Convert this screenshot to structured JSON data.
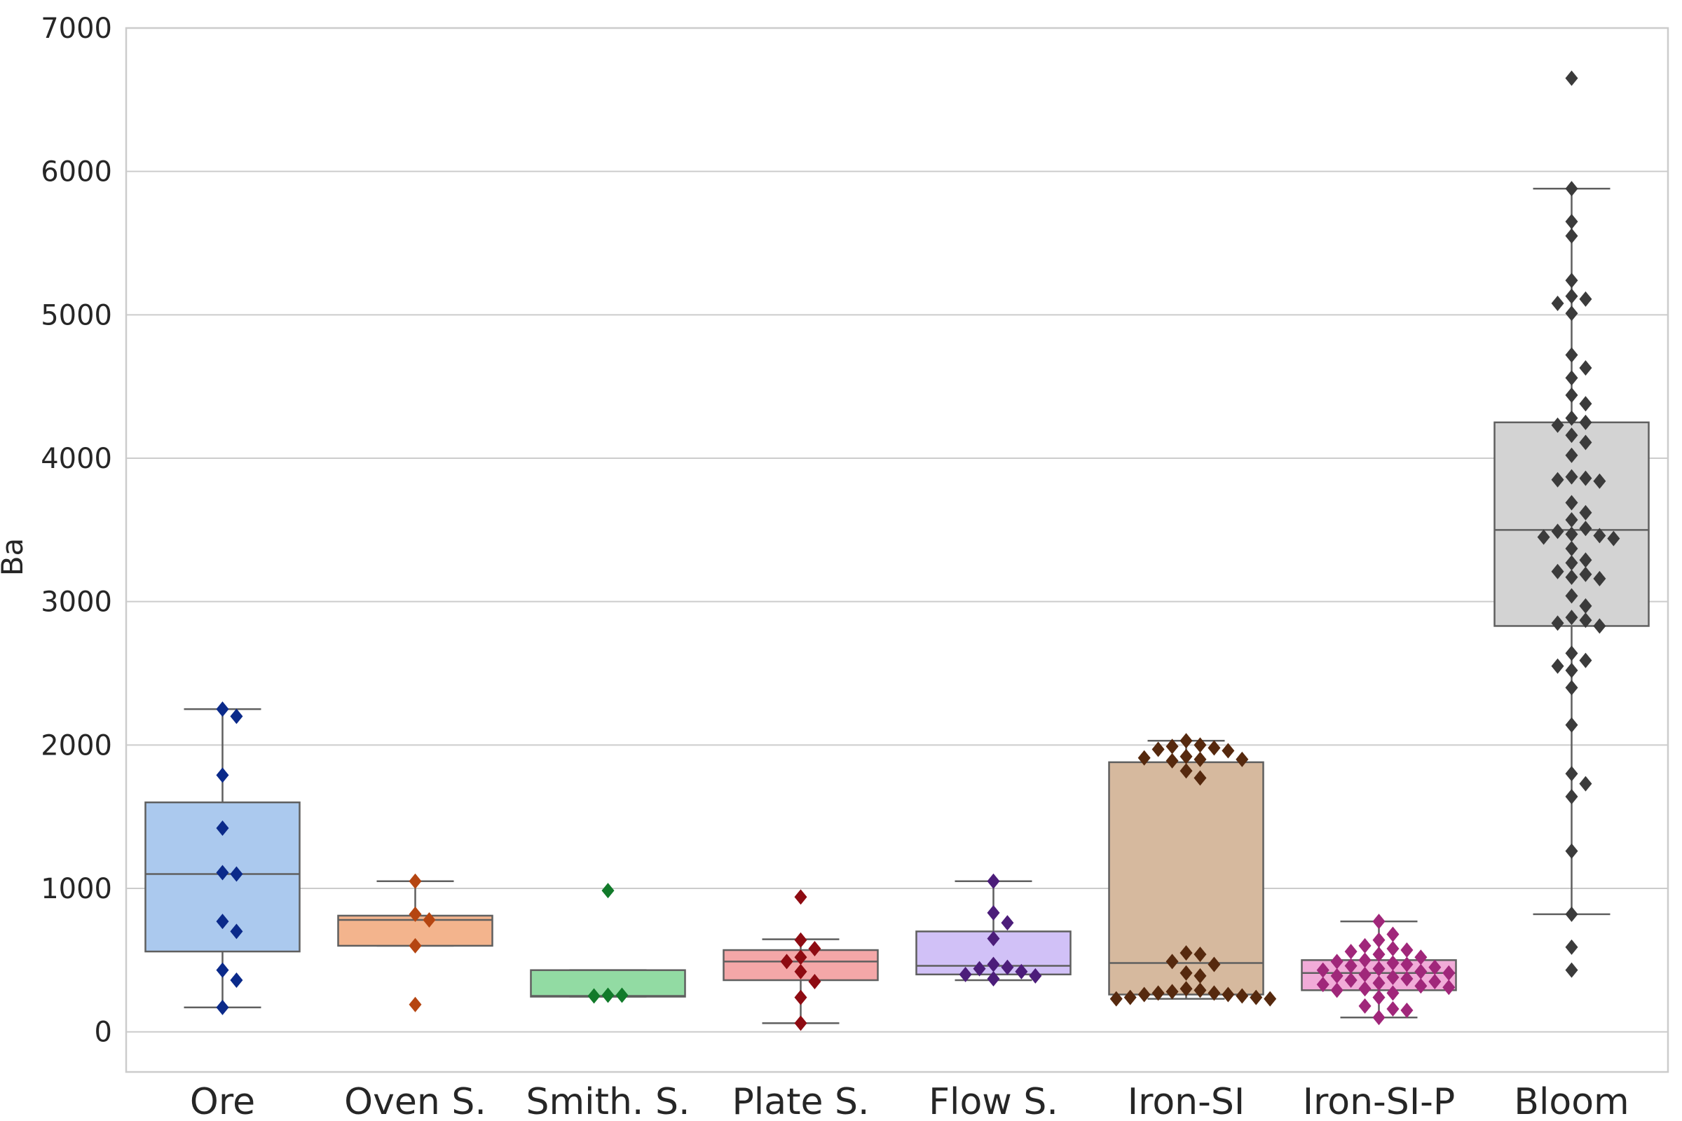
{
  "chart_data": {
    "type": "box",
    "ylabel": "Ba",
    "ylim": [
      -280,
      7000
    ],
    "yticks": [
      0,
      1000,
      2000,
      3000,
      4000,
      5000,
      6000,
      7000
    ],
    "grid": true,
    "categories": [
      "Ore",
      "Oven S.",
      "Smith. S.",
      "Plate S.",
      "Flow S.",
      "Iron-SI",
      "Iron-SI-P",
      "Bloom"
    ],
    "boxes": [
      {
        "name": "Ore",
        "box_color": "#abc9ee",
        "point_color": "#0b2a8a",
        "q1": 560,
        "median": 1100,
        "q3": 1600,
        "whisker_low": 170,
        "whisker_high": 2250,
        "points": [
          2250,
          2200,
          1790,
          1420,
          1110,
          1100,
          770,
          700,
          430,
          360,
          170
        ]
      },
      {
        "name": "Oven S.",
        "box_color": "#f3b48d",
        "point_color": "#b54511",
        "q1": 600,
        "median": 780,
        "q3": 810,
        "whisker_low": 600,
        "whisker_high": 1050,
        "points": [
          1050,
          820,
          780,
          600,
          190
        ]
      },
      {
        "name": "Smith. S.",
        "box_color": "#92dba3",
        "point_color": "#117a2a",
        "q1": 245,
        "median": 250,
        "q3": 430,
        "whisker_low": 245,
        "whisker_high": 430,
        "points": [
          985,
          255,
          250,
          255
        ]
      },
      {
        "name": "Plate S.",
        "box_color": "#f4a7a8",
        "point_color": "#8e0b12",
        "q1": 360,
        "median": 490,
        "q3": 570,
        "whisker_low": 60,
        "whisker_high": 645,
        "points": [
          940,
          640,
          580,
          520,
          490,
          420,
          350,
          240,
          60
        ]
      },
      {
        "name": "Flow S.",
        "box_color": "#d1c1f7",
        "point_color": "#4c1d7a",
        "q1": 400,
        "median": 460,
        "q3": 700,
        "whisker_low": 360,
        "whisker_high": 1050,
        "points": [
          1050,
          830,
          760,
          650,
          470,
          450,
          440,
          420,
          400,
          390,
          370
        ]
      },
      {
        "name": "Iron-SI",
        "box_color": "#d6b99e",
        "point_color": "#56290e",
        "q1": 260,
        "median": 480,
        "q3": 1880,
        "whisker_low": 230,
        "whisker_high": 2030,
        "points": [
          2030,
          2000,
          1990,
          1980,
          1970,
          1960,
          1920,
          1910,
          1900,
          1900,
          1890,
          1820,
          1770,
          550,
          540,
          490,
          470,
          410,
          390,
          300,
          290,
          280,
          270,
          270,
          260,
          260,
          250,
          240,
          240,
          230,
          230
        ]
      },
      {
        "name": "Iron-SI-P",
        "box_color": "#f1abd8",
        "point_color": "#a0277a",
        "q1": 290,
        "median": 410,
        "q3": 500,
        "whisker_low": 100,
        "whisker_high": 770,
        "points": [
          770,
          680,
          640,
          600,
          580,
          570,
          560,
          540,
          520,
          500,
          490,
          480,
          470,
          460,
          450,
          440,
          430,
          420,
          410,
          400,
          390,
          380,
          370,
          360,
          350,
          340,
          330,
          320,
          310,
          300,
          290,
          270,
          240,
          180,
          160,
          150,
          100
        ]
      },
      {
        "name": "Bloom",
        "box_color": "#d3d3d3",
        "point_color": "#3b3b3b",
        "q1": 2830,
        "median": 3500,
        "q3": 4250,
        "whisker_low": 820,
        "whisker_high": 5880,
        "points": [
          6650,
          5880,
          5650,
          5550,
          5240,
          5130,
          5110,
          5080,
          5010,
          4720,
          4630,
          4560,
          4440,
          4380,
          4280,
          4250,
          4230,
          4160,
          4110,
          4020,
          3870,
          3860,
          3850,
          3840,
          3690,
          3620,
          3570,
          3510,
          3490,
          3470,
          3460,
          3450,
          3440,
          3370,
          3290,
          3270,
          3210,
          3190,
          3170,
          3160,
          3040,
          2970,
          2890,
          2870,
          2850,
          2830,
          2640,
          2590,
          2550,
          2520,
          2400,
          2140,
          1800,
          1730,
          1640,
          1260,
          820,
          590,
          430
        ]
      }
    ]
  }
}
